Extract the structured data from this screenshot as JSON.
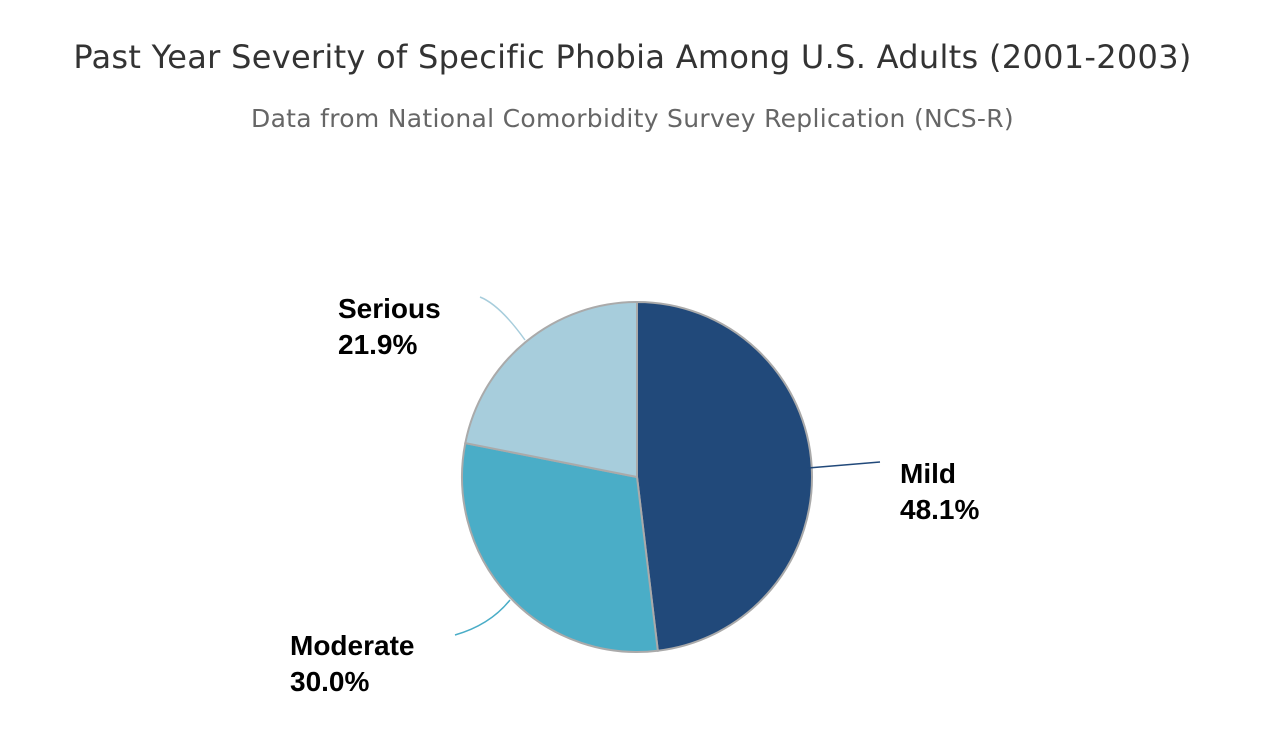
{
  "chart_data": {
    "type": "pie",
    "title": "Past Year Severity of Specific Phobia Among U.S. Adults (2001-2003)",
    "subtitle": "Data from National Comorbidity Survey Replication (NCS-R)",
    "slices": [
      {
        "name": "Mild",
        "value": 48.1,
        "label": "48.1%",
        "color": "#21497a"
      },
      {
        "name": "Moderate",
        "value": 30.0,
        "label": "30.0%",
        "color": "#4aadc7"
      },
      {
        "name": "Serious",
        "value": 21.9,
        "label": "21.9%",
        "color": "#a7cddc"
      }
    ],
    "start_angle_deg": 0,
    "direction": "clockwise",
    "slice_border_color": "#aaaaaa",
    "labels": "outside-with-connectors",
    "legend": false
  }
}
